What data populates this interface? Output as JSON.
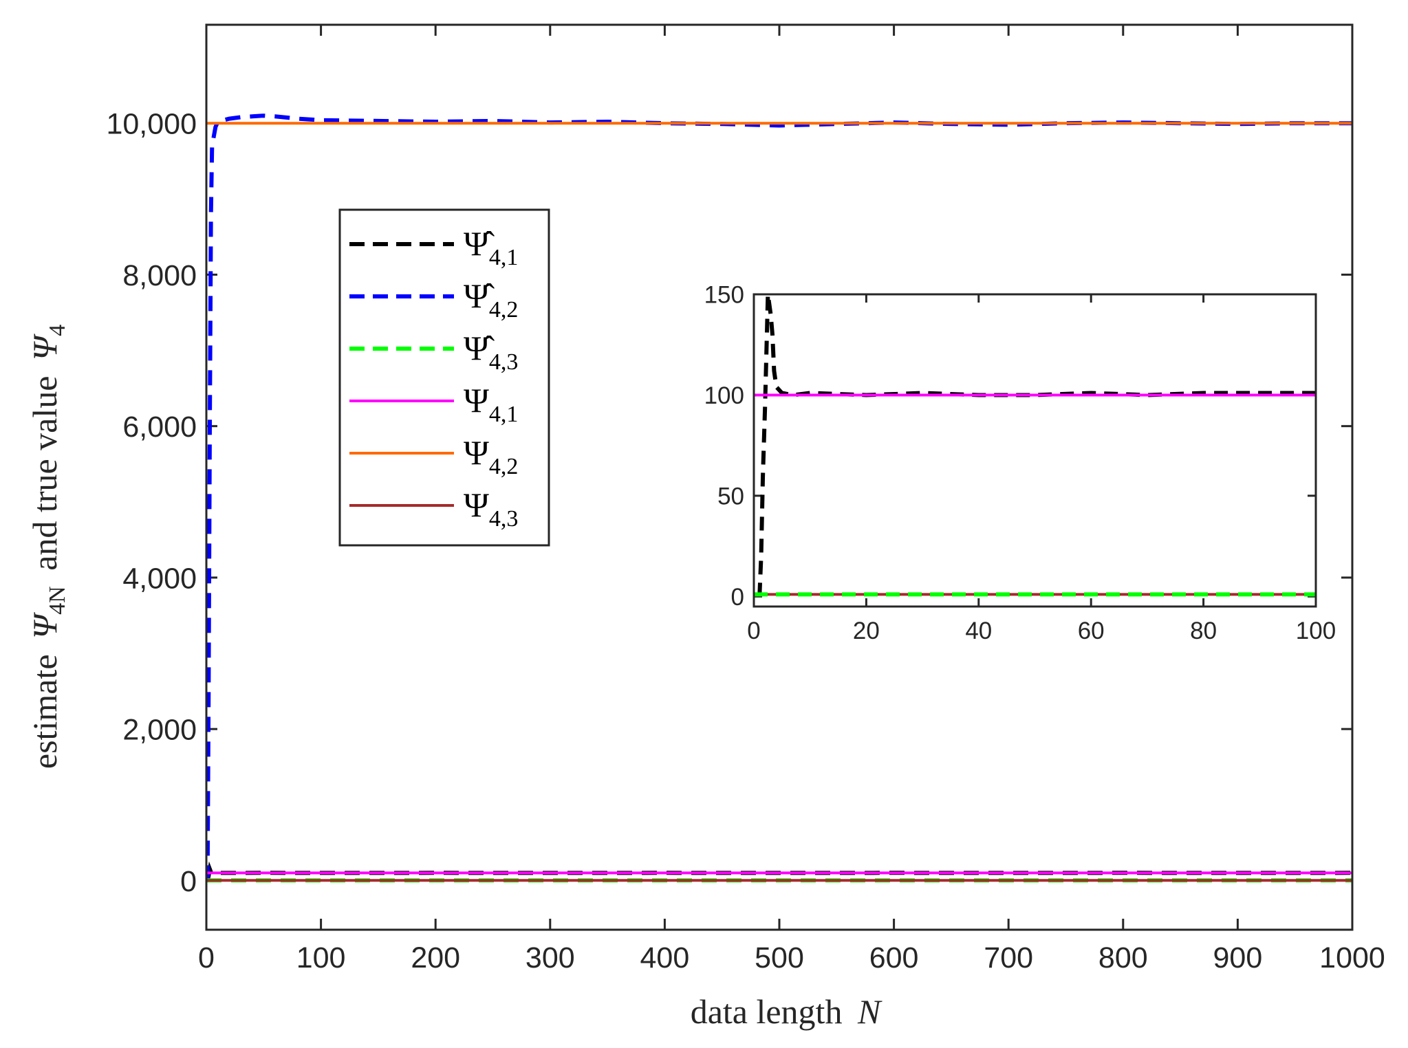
{
  "chart_data": [
    {
      "type": "line",
      "xlabel": "data length",
      "xlabel_var": "N",
      "ylabel_text": "estimate",
      "ylabel_symbol": "Ψ",
      "ylabel_hat_sub": "4N",
      "ylabel_mid": "and true value",
      "ylabel_sub": "4",
      "xlim": [
        0,
        1000
      ],
      "ylim": [
        -650,
        11300
      ],
      "xticks": [
        0,
        100,
        200,
        300,
        400,
        500,
        600,
        700,
        800,
        900,
        1000
      ],
      "yticks": [
        0,
        2000,
        4000,
        6000,
        8000,
        10000
      ],
      "ytick_labels": [
        "0",
        "2,000",
        "4,000",
        "6,000",
        "8,000",
        "10,000"
      ],
      "grid": false,
      "legend_position": "upper-left",
      "series": [
        {
          "name": "Ψ̂",
          "sub": "4,1",
          "hat": true,
          "style": "dashed",
          "color": "#000000",
          "x": [
            1,
            2,
            3,
            4,
            6,
            10,
            50,
            100,
            200,
            300,
            400,
            500,
            600,
            700,
            800,
            900,
            1000
          ],
          "y": [
            0,
            60,
            150,
            110,
            101,
            100,
            101,
            100,
            101,
            100,
            101,
            100,
            101,
            100,
            101,
            100,
            101
          ]
        },
        {
          "name": "Ψ̂",
          "sub": "4,2",
          "hat": true,
          "style": "dashed",
          "color": "#0000ff",
          "x": [
            1,
            2,
            3,
            4,
            5,
            8,
            10,
            20,
            30,
            40,
            50,
            60,
            80,
            100,
            150,
            200,
            250,
            300,
            350,
            400,
            450,
            500,
            550,
            600,
            650,
            700,
            750,
            800,
            850,
            900,
            950,
            1000
          ],
          "y": [
            0,
            2500,
            6000,
            8800,
            9700,
            9950,
            10020,
            10060,
            10080,
            10090,
            10100,
            10090,
            10060,
            10040,
            10030,
            10020,
            10030,
            10010,
            10020,
            10000,
            9990,
            9970,
            9990,
            10010,
            9990,
            9980,
            10000,
            10010,
            10000,
            9990,
            10000,
            10000
          ]
        },
        {
          "name": "Ψ̂",
          "sub": "4,3",
          "hat": true,
          "style": "dashed",
          "color": "#00ff00",
          "x": [
            0,
            1000
          ],
          "y": [
            1,
            1
          ]
        },
        {
          "name": "Ψ",
          "sub": "4,1",
          "hat": false,
          "style": "solid",
          "color": "#ff00ff",
          "x": [
            0,
            1000
          ],
          "y": [
            100,
            100
          ]
        },
        {
          "name": "Ψ",
          "sub": "4,2",
          "hat": false,
          "style": "solid",
          "color": "#ff6a00",
          "x": [
            0,
            1000
          ],
          "y": [
            10000,
            10000
          ]
        },
        {
          "name": "Ψ",
          "sub": "4,3",
          "hat": false,
          "style": "solid",
          "color": "#a52a2a",
          "x": [
            0,
            1000
          ],
          "y": [
            1,
            1
          ]
        }
      ]
    },
    {
      "type": "line",
      "role": "inset",
      "xlim": [
        0,
        100
      ],
      "ylim": [
        -5,
        150
      ],
      "xticks": [
        0,
        20,
        40,
        60,
        80,
        100
      ],
      "yticks": [
        0,
        50,
        100,
        150
      ],
      "grid": false,
      "series": [
        {
          "ref": "Ψ̂4,1",
          "style": "dashed",
          "color": "#000000",
          "x": [
            1,
            1.3,
            1.6,
            2,
            2.5,
            3,
            3.3,
            3.6,
            4,
            5,
            7,
            10,
            20,
            30,
            40,
            50,
            60,
            70,
            80,
            90,
            100
          ],
          "y": [
            0,
            20,
            60,
            95,
            150,
            140,
            130,
            112,
            104,
            101,
            100,
            101,
            100,
            101,
            100,
            100,
            101,
            100,
            101,
            101,
            101
          ]
        },
        {
          "ref": "Ψ4,1",
          "style": "solid",
          "color": "#ff00ff",
          "x": [
            0,
            100
          ],
          "y": [
            100,
            100
          ]
        },
        {
          "ref": "Ψ4,3",
          "style": "solid",
          "color": "#a52a2a",
          "x": [
            0,
            100
          ],
          "y": [
            1,
            1
          ]
        },
        {
          "ref": "Ψ̂4,3",
          "style": "dashed",
          "color": "#00ff00",
          "x": [
            0,
            100
          ],
          "y": [
            1,
            1
          ]
        }
      ]
    }
  ]
}
